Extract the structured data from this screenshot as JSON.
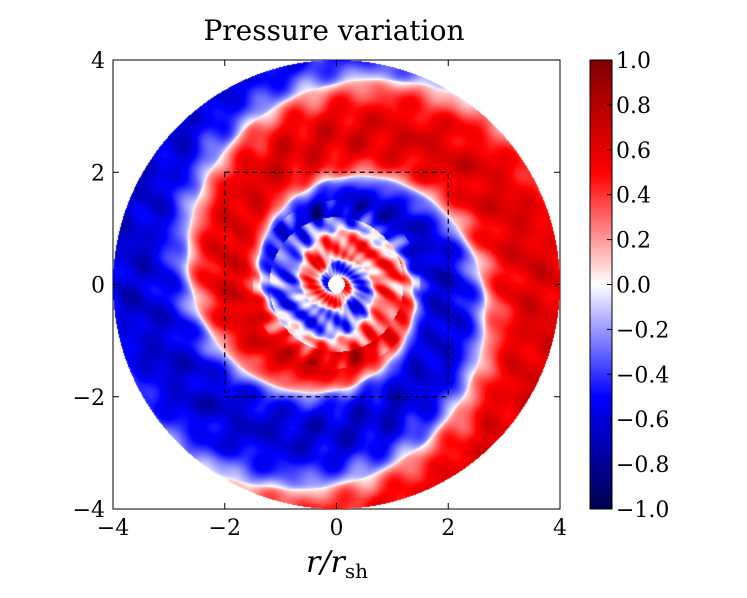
{
  "chart_data": {
    "type": "heatmap",
    "title": "Pressure variation",
    "xlabel": "r/r",
    "xlabel_sub": "sh",
    "ylabel": "",
    "xlim": [
      -4,
      4
    ],
    "ylim": [
      -4,
      4
    ],
    "xticks": [
      -4,
      -2,
      0,
      2,
      4
    ],
    "yticks": [
      -4,
      -2,
      0,
      2,
      4
    ],
    "xtick_labels": [
      "−4",
      "−2",
      "0",
      "2",
      "4"
    ],
    "ytick_labels": [
      "−4",
      "−2",
      "0",
      "2",
      "4"
    ],
    "domain_radius": 4,
    "inner_hole_radius": 0.15,
    "dashed_box": {
      "x": [
        -2,
        2
      ],
      "y": [
        -2,
        2
      ]
    },
    "spiral_arms": 1,
    "colorbar": {
      "colormap": "seismic",
      "vmin": -1.0,
      "vmax": 1.0,
      "ticks": [
        1.0,
        0.8,
        0.6,
        0.4,
        0.2,
        0.0,
        -0.2,
        -0.4,
        -0.6,
        -0.8,
        -1.0
      ],
      "tick_labels": [
        "1.0",
        "0.8",
        "0.6",
        "0.4",
        "0.2",
        "0.0",
        "−0.2",
        "−0.4",
        "−0.6",
        "−0.8",
        "−1.0"
      ],
      "colors": {
        "low": "#00004c",
        "mid_low": "#0000ff",
        "center": "#ffffff",
        "mid_high": "#ff0000",
        "high": "#800000"
      }
    }
  }
}
